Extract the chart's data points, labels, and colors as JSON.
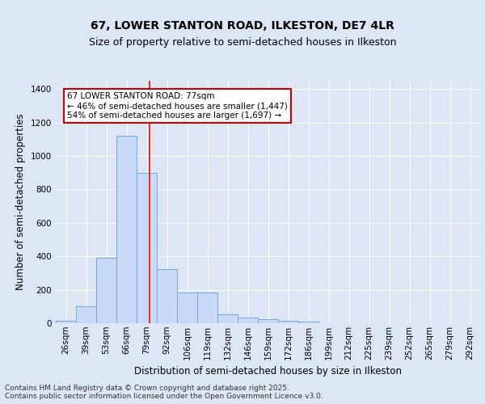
{
  "title_line1": "67, LOWER STANTON ROAD, ILKESTON, DE7 4LR",
  "title_line2": "Size of property relative to semi-detached houses in Ilkeston",
  "xlabel": "Distribution of semi-detached houses by size in Ilkeston",
  "ylabel": "Number of semi-detached properties",
  "bin_labels": [
    "26sqm",
    "39sqm",
    "53sqm",
    "66sqm",
    "79sqm",
    "92sqm",
    "106sqm",
    "119sqm",
    "132sqm",
    "146sqm",
    "159sqm",
    "172sqm",
    "186sqm",
    "199sqm",
    "212sqm",
    "225sqm",
    "239sqm",
    "252sqm",
    "265sqm",
    "279sqm",
    "292sqm"
  ],
  "bar_heights": [
    15,
    100,
    390,
    1120,
    900,
    325,
    185,
    185,
    55,
    35,
    25,
    15,
    10,
    0,
    0,
    0,
    0,
    0,
    0,
    0,
    0
  ],
  "bar_color": "#c9daf8",
  "bar_edge_color": "#6fa8dc",
  "redline_bin_index": 4.15,
  "annotation_text": "67 LOWER STANTON ROAD: 77sqm\n← 46% of semi-detached houses are smaller (1,447)\n54% of semi-detached houses are larger (1,697) →",
  "annotation_box_color": "#ffffff",
  "annotation_box_edge": "#cc0000",
  "ylim": [
    0,
    1450
  ],
  "yticks": [
    0,
    200,
    400,
    600,
    800,
    1000,
    1200,
    1400
  ],
  "background_color": "#dce6f5",
  "plot_bg_color": "#dce6f5",
  "footer_text": "Contains HM Land Registry data © Crown copyright and database right 2025.\nContains public sector information licensed under the Open Government Licence v3.0.",
  "title_fontsize": 10,
  "subtitle_fontsize": 9,
  "axis_label_fontsize": 8.5,
  "tick_fontsize": 7.5,
  "annotation_fontsize": 7.5,
  "footer_fontsize": 6.5
}
